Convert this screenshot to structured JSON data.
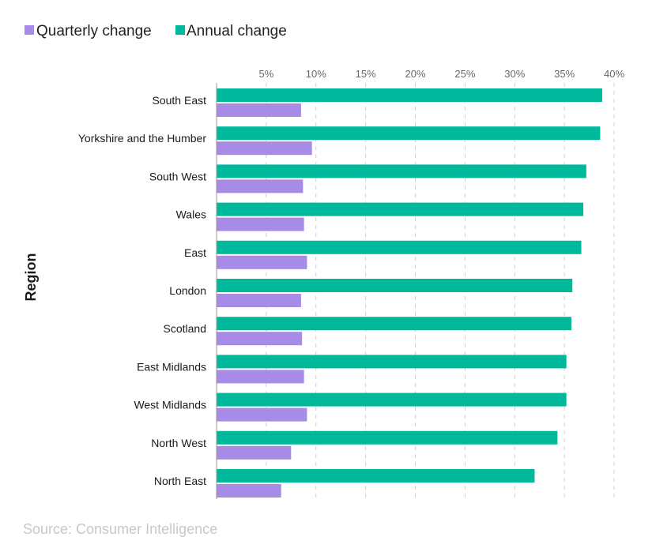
{
  "legend": {
    "quarterly_label": "Quarterly change",
    "annual_label": "Annual change"
  },
  "source_text": "Source: Consumer Intelligence",
  "colors": {
    "quarterly": "#a78be6",
    "annual": "#00b89c",
    "grid": "#cfcfcf",
    "axis": "#9a9a9a"
  },
  "chart_data": {
    "type": "bar",
    "orientation": "horizontal",
    "title": "",
    "ylabel": "Region",
    "xlabel": "",
    "xlim": [
      0,
      40
    ],
    "x_ticks": [
      5,
      10,
      15,
      20,
      25,
      30,
      35,
      40
    ],
    "x_tick_labels": [
      "5%",
      "10%",
      "15%",
      "20%",
      "25%",
      "30%",
      "35%",
      "40%"
    ],
    "grid": true,
    "legend_position": "top-left",
    "categories": [
      "South East",
      "Yorkshire and the Humber",
      "South West",
      "Wales",
      "East",
      "London",
      "Scotland",
      "East Midlands",
      "West Midlands",
      "North West",
      "North East"
    ],
    "series": [
      {
        "name": "Annual change",
        "values": [
          38.8,
          38.6,
          37.2,
          36.9,
          36.7,
          35.8,
          35.7,
          35.2,
          35.2,
          34.3,
          32.0
        ]
      },
      {
        "name": "Quarterly change",
        "values": [
          8.5,
          9.6,
          8.7,
          8.8,
          9.1,
          8.5,
          8.6,
          8.8,
          9.1,
          7.5,
          6.5
        ]
      }
    ]
  }
}
